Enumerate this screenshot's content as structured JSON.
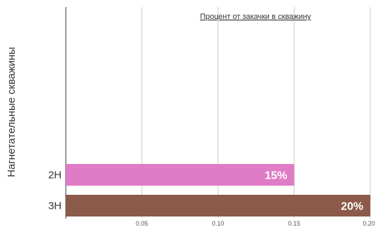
{
  "chart_data": {
    "type": "bar",
    "orientation": "horizontal",
    "title": "Процент от закачки в скважину",
    "ylabel": "Нагнетательные скважины",
    "xlabel": "",
    "xlim": [
      0,
      0.2
    ],
    "xticks": [
      "0.05",
      "0.10",
      "0.15",
      "0.20"
    ],
    "xtick_values": [
      0.05,
      0.1,
      0.15,
      0.2
    ],
    "grid": true,
    "categories": [
      "2Н",
      "3Н"
    ],
    "values": [
      0.15,
      0.2
    ],
    "data_labels": [
      "15%",
      "20%"
    ],
    "colors": [
      "#E07BC6",
      "#8C5A4A"
    ]
  }
}
